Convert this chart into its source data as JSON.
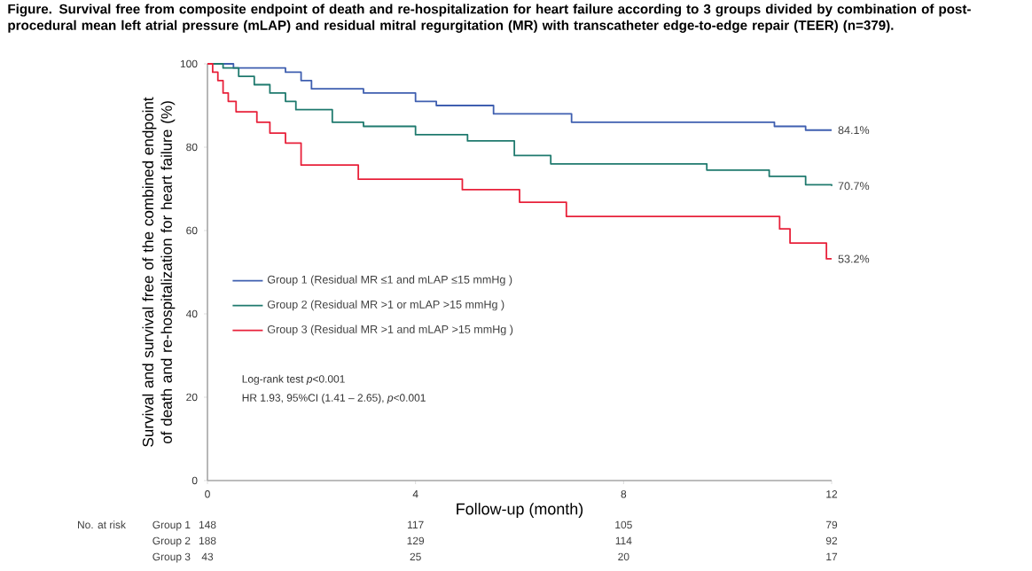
{
  "chart_data": {
    "type": "step",
    "title": "Figure. Survival free from composite endpoint of death and re-hospitalization for heart failure according to 3 groups divided by combination of post-procedural mean left atrial pressure (mLAP) and residual mitral regurgitation (MR) with transcatheter edge-to-edge repair (TEER) (n=379).",
    "xlabel": "Follow-up (month)",
    "ylabel": "Survival and survival free of the combined endpoint of death and re-hospitalization for heart failure (%)",
    "xlim": [
      0,
      12
    ],
    "xticks": [
      0,
      4,
      8,
      12
    ],
    "ylim": [
      0,
      100
    ],
    "yticks": [
      0,
      20,
      40,
      60,
      80,
      100
    ],
    "grid": false,
    "legend": "left",
    "marker": "none",
    "line_style": "solid",
    "series": [
      {
        "name": "Group 1 (Residual MR ≤1 and mLAP ≤15 mmHg )",
        "color": "#3f5fb0",
        "x": [
          0,
          0.5,
          1.5,
          1.8,
          2,
          3,
          4,
          4.4,
          5.5,
          7,
          10.9,
          11.5,
          12
        ],
        "values": [
          100,
          99,
          98,
          96,
          94,
          93,
          91,
          90,
          88,
          86,
          85,
          84.1,
          84.1
        ]
      },
      {
        "name": "Group 2 (Residual MR >1 or mLAP >15 mmHg )",
        "color": "#1f7a6e",
        "x": [
          0,
          0.3,
          0.6,
          0.9,
          1.2,
          1.5,
          1.7,
          2.4,
          3,
          4,
          5,
          5.9,
          6.6,
          9.6,
          10.8,
          11.5,
          12
        ],
        "values": [
          100,
          99,
          97,
          95,
          93,
          91,
          89,
          86,
          85,
          83,
          81.5,
          78,
          76,
          74.5,
          73,
          71,
          70.7
        ]
      },
      {
        "name": "Group 3 (Residual MR >1 and mLAP >15 mmHg )",
        "color": "#e8213a",
        "x": [
          0,
          0.1,
          0.2,
          0.3,
          0.4,
          0.55,
          0.95,
          1.2,
          1.5,
          1.8,
          2.9,
          4.9,
          6.0,
          6.9,
          11.0,
          11.2,
          11.9,
          12
        ],
        "values": [
          100,
          98,
          96,
          93,
          91,
          88.5,
          86,
          83.4,
          81,
          75.7,
          72.3,
          69.8,
          66.8,
          63.4,
          60.4,
          57,
          53.2,
          53.2
        ]
      }
    ],
    "annotations": [
      "Log-rank test *p*<0.001",
      "HR 1.93, 95%CI (1.41 – 2.65), *p*<0.001",
      "84.1%",
      "70.7%",
      "53.2%",
      "No. at risk",
      [
        "Group 1",
        "148",
        "117",
        "105",
        "79"
      ],
      [
        "Group 2",
        "188",
        "129",
        "114",
        "92"
      ],
      [
        "Group 3",
        "43",
        "25",
        "20",
        "17"
      ]
    ]
  }
}
